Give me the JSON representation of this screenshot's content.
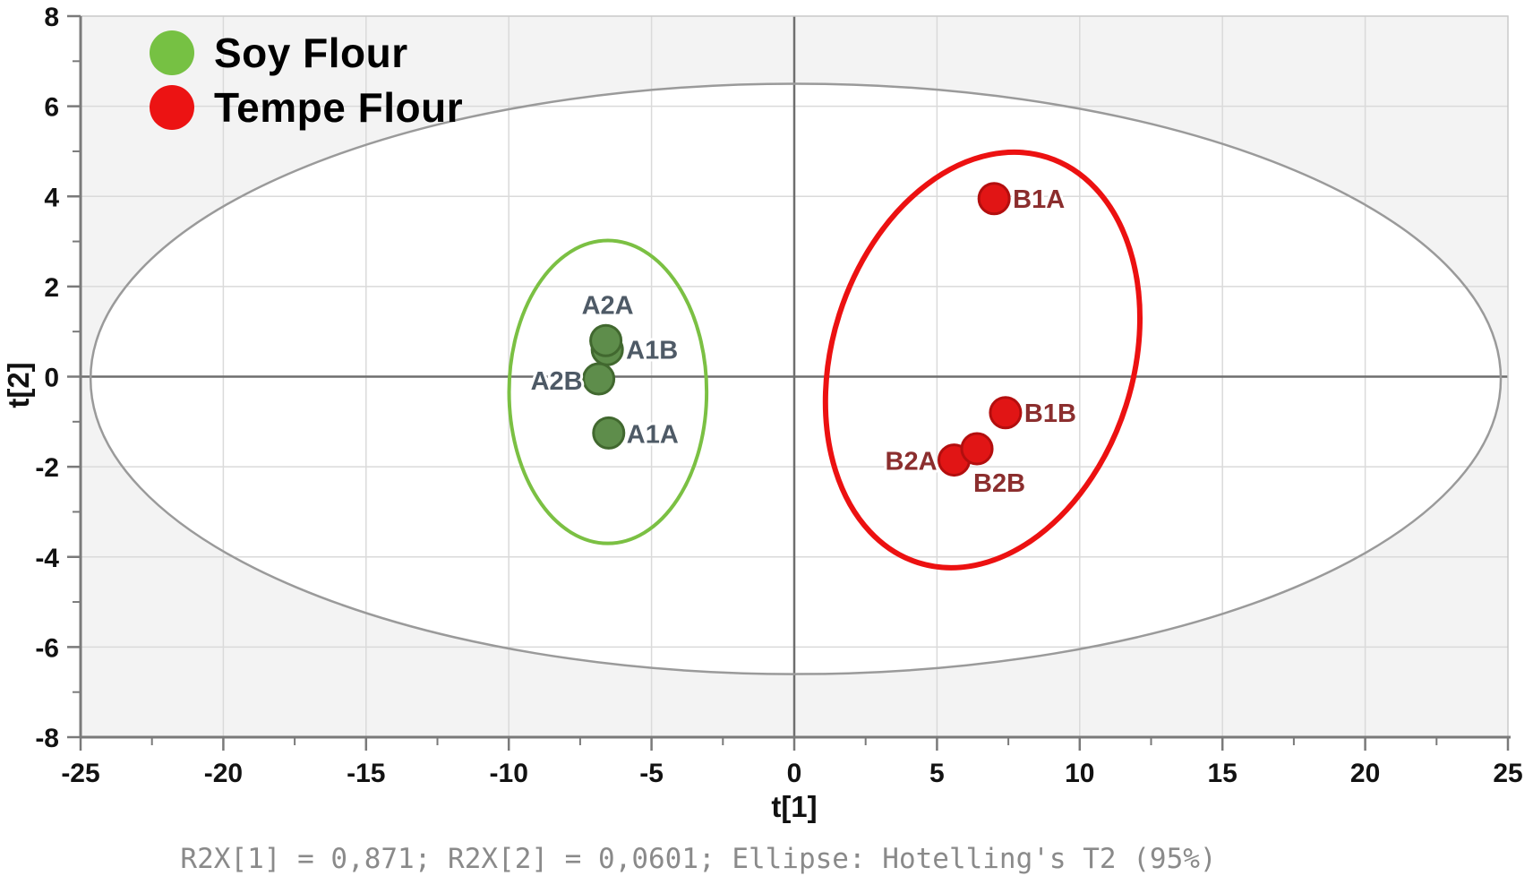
{
  "legend": {
    "items": [
      {
        "label": "Soy Flour",
        "color": "#76c143"
      },
      {
        "label": "Tempe Flour",
        "color": "#ec1313"
      }
    ]
  },
  "caption": "R2X[1] = 0,871; R2X[2] = 0,0601; Ellipse: Hotelling's T2 (95%)",
  "chart_data": {
    "type": "scatter",
    "title": "",
    "xlabel": "t[1]",
    "ylabel": "t[2]",
    "xlim": [
      -25,
      25
    ],
    "ylim": [
      -8,
      8
    ],
    "x_ticks": [
      -25,
      -20,
      -15,
      -10,
      -5,
      0,
      5,
      10,
      15,
      20,
      25
    ],
    "x_minor_step": 2.5,
    "y_ticks": [
      -8,
      -6,
      -4,
      -2,
      0,
      2,
      4,
      6,
      8
    ],
    "y_minor_step": 1,
    "grid": true,
    "legend_position": "top-left",
    "colors": {
      "plot_bg": "#f3f3f3",
      "inner_ellipse_fill": "#ffffff",
      "grid": "#dadada",
      "zero_line": "#6e6e6e",
      "frame": "#c9c9c9",
      "axis": "#7a7a7a",
      "tick_label": "#121212"
    },
    "series": [
      {
        "name": "Soy Flour",
        "marker_fill": "#5e8d4b",
        "marker_stroke": "#41682f",
        "label_color": "#4e5a66",
        "points": [
          {
            "label": "A1B",
            "x": -6.55,
            "y": 0.6,
            "label_anchor": "start",
            "label_dx": 21,
            "label_dy": 10
          },
          {
            "label": "A2A",
            "x": -6.6,
            "y": 0.8,
            "label_anchor": "middle",
            "label_dx": 2,
            "label_dy": -30
          },
          {
            "label": "A2B",
            "x": -6.85,
            "y": -0.05,
            "label_anchor": "end",
            "label_dx": -18,
            "label_dy": 12
          },
          {
            "label": "A1A",
            "x": -6.5,
            "y": -1.25,
            "label_anchor": "start",
            "label_dx": 20,
            "label_dy": 11
          }
        ]
      },
      {
        "name": "Tempe Flour",
        "marker_fill": "#e11515",
        "marker_stroke": "#b30e0e",
        "label_color": "#8b2e2e",
        "points": [
          {
            "label": "B1A",
            "x": 7.0,
            "y": 3.95,
            "label_anchor": "start",
            "label_dx": 21,
            "label_dy": 10
          },
          {
            "label": "B2A",
            "x": 5.6,
            "y": -1.85,
            "label_anchor": "end",
            "label_dx": -19,
            "label_dy": 11
          },
          {
            "label": "B2B",
            "x": 6.4,
            "y": -1.6,
            "label_anchor": "start",
            "label_dx": -4,
            "label_dy": 48
          },
          {
            "label": "B1B",
            "x": 7.4,
            "y": -0.8,
            "label_anchor": "start",
            "label_dx": 21,
            "label_dy": 10
          }
        ]
      }
    ],
    "ellipses": [
      {
        "name": "hotelling-t2-95",
        "cx": 0.05,
        "cy": -0.05,
        "rx": 24.7,
        "ry": 6.55,
        "rotate_deg": 0,
        "stroke": "#9a9a9a",
        "stroke_width": 2.5
      },
      {
        "name": "soy-cluster",
        "cx": -6.53,
        "cy": -0.34,
        "rx": 3.46,
        "ry": 3.36,
        "rotate_deg": 0,
        "stroke": "#7bc043",
        "stroke_width": 4
      },
      {
        "name": "tempe-cluster",
        "cx": 6.6,
        "cy": 0.37,
        "rx": 5.27,
        "ry": 4.72,
        "rotate_deg": 17.7,
        "stroke": "#ec1111",
        "stroke_width": 6
      }
    ]
  }
}
